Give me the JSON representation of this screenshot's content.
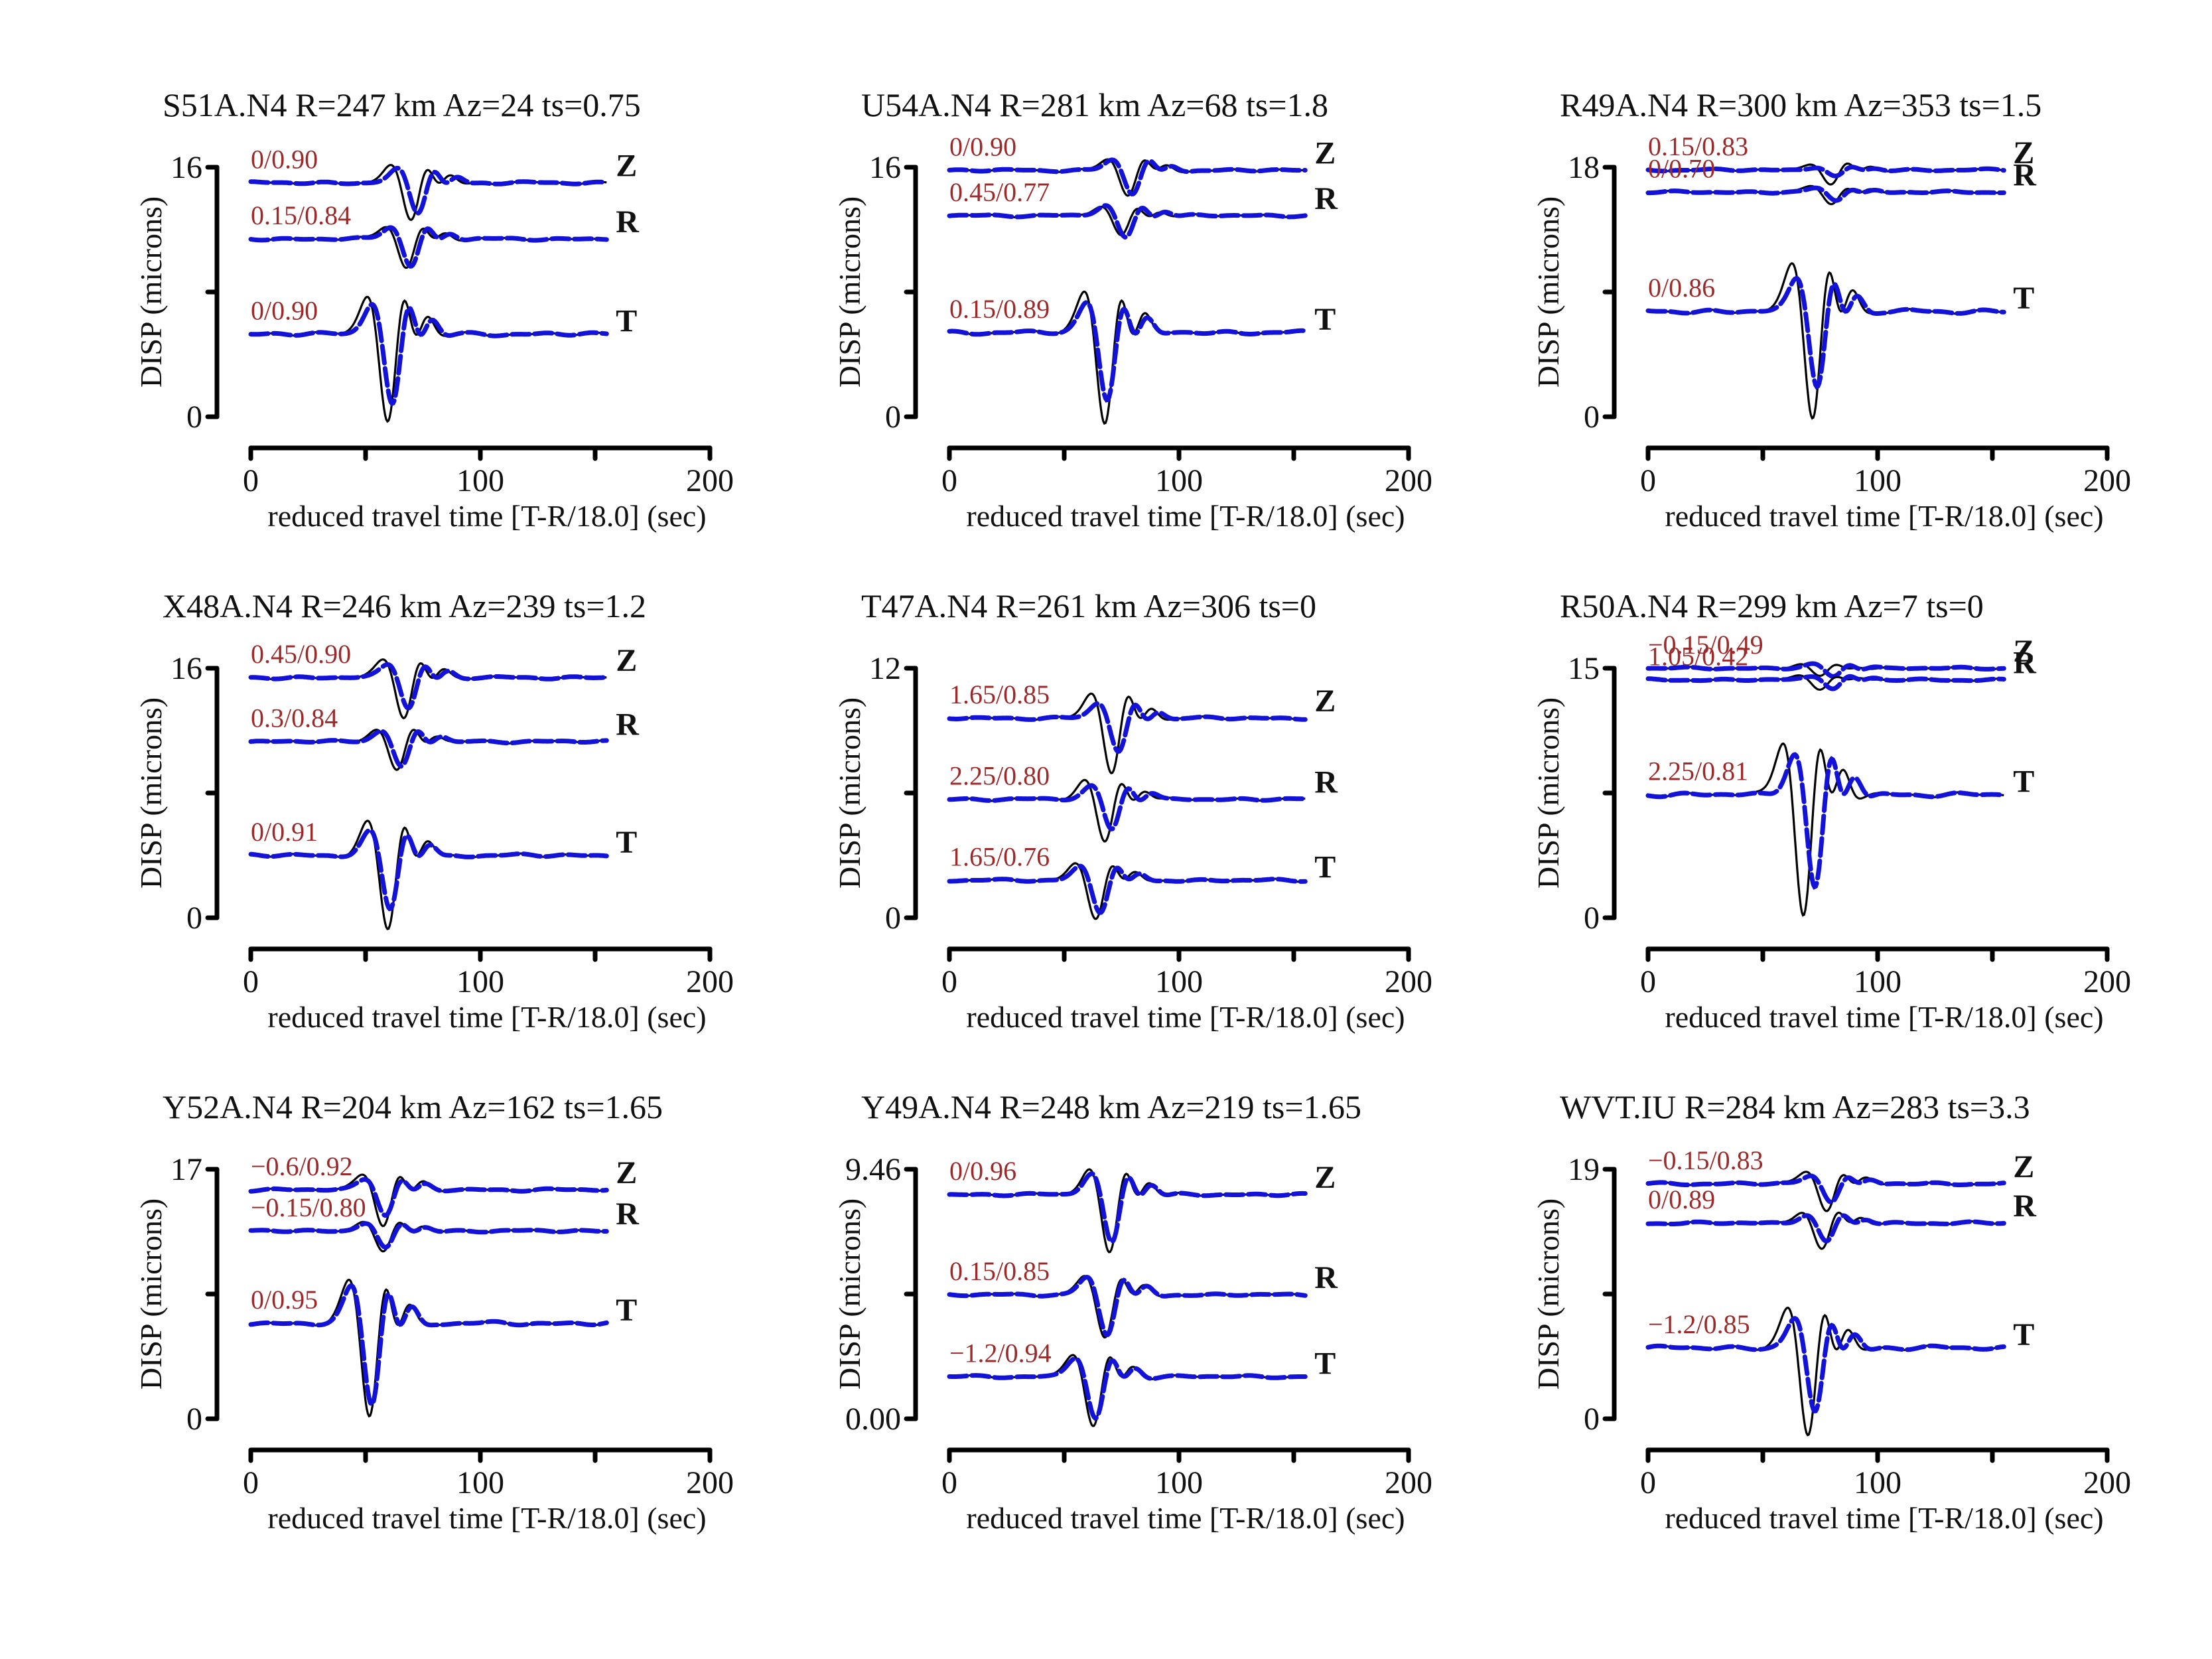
{
  "chart_data": {
    "type": "line",
    "layout": "3x3 grid of seismogram panels",
    "x_axis": {
      "label": "reduced travel time [T-R/18.0] (sec)",
      "range": [
        0,
        200
      ],
      "ticks": [
        0,
        50,
        100,
        150,
        200
      ],
      "tick_labels": [
        "0",
        "",
        "100",
        "",
        "200"
      ]
    },
    "y_axis_label": "DISP (microns)",
    "legend": {
      "observed": "solid black line",
      "synthetic": "dashed blue line"
    },
    "colors": {
      "observed": "#000000",
      "synthetic": "#1212d8",
      "annotation": "#9b2a2a"
    },
    "annotation_format": "time shift / cross-correlation",
    "panels": [
      {
        "title": "S51A.N4 R=247 km Az=24 ts=0.75",
        "station": "S51A.N4",
        "distance_km": 247,
        "azimuth": 24,
        "ts": 0.75,
        "ylim": [
          0,
          16
        ],
        "ytick_labels": [
          "0",
          "16"
        ],
        "traces": [
          {
            "component": "Z",
            "annotation": "0/0.90",
            "baseline": 15.0,
            "t0": 70,
            "obs_amp": 2.4,
            "syn_amp": 1.9,
            "syn_shift": 3
          },
          {
            "component": "R",
            "annotation": "0.15/0.84",
            "baseline": 11.4,
            "t0": 68,
            "obs_amp": 1.8,
            "syn_amp": 1.7,
            "syn_shift": 2
          },
          {
            "component": "T",
            "annotation": "0/0.90",
            "baseline": 5.3,
            "t0": 60,
            "obs_amp": 5.6,
            "syn_amp": 4.5,
            "syn_shift": 2
          }
        ]
      },
      {
        "title": "U54A.N4 R=281 km Az=68 ts=1.8",
        "station": "U54A.N4",
        "distance_km": 281,
        "azimuth": 68,
        "ts": 1.8,
        "ylim": [
          0,
          16
        ],
        "ytick_labels": [
          "0",
          "16"
        ],
        "traces": [
          {
            "component": "Z",
            "annotation": "0/0.90",
            "baseline": 15.8,
            "t0": 78,
            "obs_amp": 1.6,
            "syn_amp": 1.5,
            "syn_shift": 2
          },
          {
            "component": "R",
            "annotation": "0.45/0.77",
            "baseline": 12.9,
            "t0": 75,
            "obs_amp": 1.3,
            "syn_amp": 1.4,
            "syn_shift": 2
          },
          {
            "component": "T",
            "annotation": "0.15/0.89",
            "baseline": 5.4,
            "t0": 68,
            "obs_amp": 5.8,
            "syn_amp": 4.3,
            "syn_shift": 1
          }
        ]
      },
      {
        "title": "R49A.N4 R=300 km Az=353 ts=1.5",
        "station": "R49A.N4",
        "distance_km": 300,
        "azimuth": 353,
        "ts": 1.5,
        "ylim": [
          0,
          18
        ],
        "ytick_labels": [
          "0",
          "18"
        ],
        "traces": [
          {
            "component": "Z",
            "annotation": "0.15/0.83",
            "baseline": 17.8,
            "t0": 80,
            "obs_amp": 1.1,
            "syn_amp": 0.5,
            "syn_shift": 2
          },
          {
            "component": "R",
            "annotation": "0/0.70",
            "baseline": 16.2,
            "t0": 80,
            "obs_amp": 0.9,
            "syn_amp": 0.6,
            "syn_shift": 2
          },
          {
            "component": "T",
            "annotation": "0/0.86",
            "baseline": 7.6,
            "t0": 72,
            "obs_amp": 7.5,
            "syn_amp": 5.3,
            "syn_shift": 2
          }
        ]
      },
      {
        "title": "X48A.N4 R=246 km Az=239 ts=1.2",
        "station": "X48A.N4",
        "distance_km": 246,
        "azimuth": 239,
        "ts": 1.2,
        "ylim": [
          0,
          16
        ],
        "ytick_labels": [
          "0",
          "16"
        ],
        "traces": [
          {
            "component": "Z",
            "annotation": "0.45/0.90",
            "baseline": 15.4,
            "t0": 67,
            "obs_amp": 2.5,
            "syn_amp": 1.9,
            "syn_shift": 2
          },
          {
            "component": "R",
            "annotation": "0.3/0.84",
            "baseline": 11.3,
            "t0": 64,
            "obs_amp": 1.8,
            "syn_amp": 1.6,
            "syn_shift": 2
          },
          {
            "component": "T",
            "annotation": "0/0.91",
            "baseline": 4.0,
            "t0": 60,
            "obs_amp": 4.7,
            "syn_amp": 3.4,
            "syn_shift": 1
          }
        ]
      },
      {
        "title": "T47A.N4 R=261 km Az=306 ts=0",
        "station": "T47A.N4",
        "distance_km": 261,
        "azimuth": 306,
        "ts": 0,
        "ylim": [
          0,
          12
        ],
        "ytick_labels": [
          "0",
          "12"
        ],
        "traces": [
          {
            "component": "Z",
            "annotation": "1.65/0.85",
            "baseline": 9.6,
            "t0": 71,
            "obs_amp": 2.6,
            "syn_amp": 1.6,
            "syn_shift": 3
          },
          {
            "component": "R",
            "annotation": "2.25/0.80",
            "baseline": 5.7,
            "t0": 68,
            "obs_amp": 2.0,
            "syn_amp": 1.4,
            "syn_shift": 3
          },
          {
            "component": "T",
            "annotation": "1.65/0.76",
            "baseline": 1.8,
            "t0": 64,
            "obs_amp": 1.8,
            "syn_amp": 1.5,
            "syn_shift": 2
          }
        ]
      },
      {
        "title": "R50A.N4 R=299 km Az=7 ts=0",
        "station": "R50A.N4",
        "distance_km": 299,
        "azimuth": 7,
        "ts": 0,
        "ylim": [
          0,
          15
        ],
        "ytick_labels": [
          "0",
          "15"
        ],
        "traces": [
          {
            "component": "Z",
            "annotation": "−0.15/0.49",
            "baseline": 15.0,
            "t0": 75,
            "obs_amp": 0.5,
            "syn_amp": 0.5,
            "syn_shift": 6
          },
          {
            "component": "R",
            "annotation": "1.05/0.42",
            "baseline": 14.3,
            "t0": 75,
            "obs_amp": 0.5,
            "syn_amp": 0.5,
            "syn_shift": 6
          },
          {
            "component": "T",
            "annotation": "2.25/0.81",
            "baseline": 7.4,
            "t0": 68,
            "obs_amp": 7.2,
            "syn_amp": 5.5,
            "syn_shift": 5
          }
        ]
      },
      {
        "title": "Y52A.N4 R=204 km Az=162 ts=1.65",
        "station": "Y52A.N4",
        "distance_km": 204,
        "azimuth": 162,
        "ts": 1.65,
        "ylim": [
          0,
          17
        ],
        "ytick_labels": [
          "0",
          "17"
        ],
        "traces": [
          {
            "component": "Z",
            "annotation": "−0.6/0.92",
            "baseline": 15.6,
            "t0": 58,
            "obs_amp": 2.4,
            "syn_amp": 1.7,
            "syn_shift": 1
          },
          {
            "component": "R",
            "annotation": "−0.15/0.80",
            "baseline": 12.8,
            "t0": 58,
            "obs_amp": 1.5,
            "syn_amp": 1.2,
            "syn_shift": 1
          },
          {
            "component": "T",
            "annotation": "0/0.95",
            "baseline": 6.5,
            "t0": 52,
            "obs_amp": 6.3,
            "syn_amp": 5.5,
            "syn_shift": 1
          }
        ]
      },
      {
        "title": "Y49A.N4 R=248 km Az=219 ts=1.65",
        "station": "Y49A.N4",
        "distance_km": 248,
        "azimuth": 219,
        "ts": 1.65,
        "ylim": [
          0.0,
          9.46
        ],
        "ytick_labels": [
          "0.00",
          "9.46"
        ],
        "traces": [
          {
            "component": "Z",
            "annotation": "0/0.96",
            "baseline": 8.5,
            "t0": 70,
            "obs_amp": 2.2,
            "syn_amp": 1.8,
            "syn_shift": 1
          },
          {
            "component": "R",
            "annotation": "0.15/0.85",
            "baseline": 4.7,
            "t0": 68,
            "obs_amp": 1.6,
            "syn_amp": 1.5,
            "syn_shift": 1
          },
          {
            "component": "T",
            "annotation": "−1.2/0.94",
            "baseline": 1.6,
            "t0": 63,
            "obs_amp": 1.9,
            "syn_amp": 1.6,
            "syn_shift": 1
          }
        ]
      },
      {
        "title": "WVT.IU R=284 km Az=283 ts=3.3",
        "station": "WVT.IU",
        "distance_km": 284,
        "azimuth": 283,
        "ts": 3.3,
        "ylim": [
          0,
          19
        ],
        "ytick_labels": [
          "0",
          "19"
        ],
        "traces": [
          {
            "component": "Z",
            "annotation": "−0.15/0.83",
            "baseline": 17.9,
            "t0": 78,
            "obs_amp": 2.0,
            "syn_amp": 1.3,
            "syn_shift": 2
          },
          {
            "component": "R",
            "annotation": "0/0.89",
            "baseline": 14.9,
            "t0": 76,
            "obs_amp": 2.0,
            "syn_amp": 1.4,
            "syn_shift": 2
          },
          {
            "component": "T",
            "annotation": "−1.2/0.85",
            "baseline": 5.4,
            "t0": 70,
            "obs_amp": 6.8,
            "syn_amp": 4.9,
            "syn_shift": 3
          }
        ]
      }
    ]
  }
}
